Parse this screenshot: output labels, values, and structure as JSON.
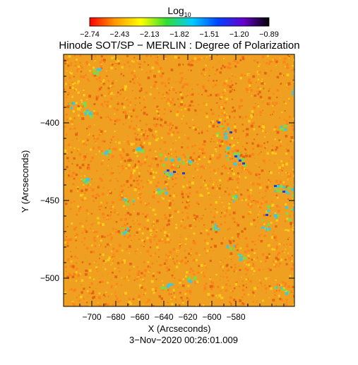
{
  "colorbar": {
    "label": "Log",
    "label_subscript": "10",
    "ticks": [
      "−2.74",
      "−2.43",
      "−2.13",
      "−1.82",
      "−1.51",
      "−1.20",
      "−0.89"
    ],
    "colors": [
      "#ff0000",
      "#ff9900",
      "#ffff00",
      "#33dd33",
      "#00ccff",
      "#0044ff",
      "#6600cc",
      "#000000"
    ]
  },
  "title": "Hinode SOT/SP − MERLIN : Degree of Polarization",
  "x_axis": {
    "label": "X (Arcseconds)",
    "ticks": [
      "−700",
      "−680",
      "−660",
      "−640",
      "−620",
      "−600",
      "−580"
    ]
  },
  "y_axis": {
    "label": "Y (Arcseconds)",
    "ticks": [
      "−400",
      "−450",
      "−500"
    ]
  },
  "timestamp": "3−Nov−2020 00:26:01.009",
  "map_colors": {
    "background": "#f0a020",
    "speckle_a": "#ff7f1a",
    "speckle_b": "#ffd21a",
    "speckle_c": "#e45a10",
    "green": "#7fd94a",
    "cyan": "#3fc8e0",
    "blue": "#2b3fcf"
  }
}
